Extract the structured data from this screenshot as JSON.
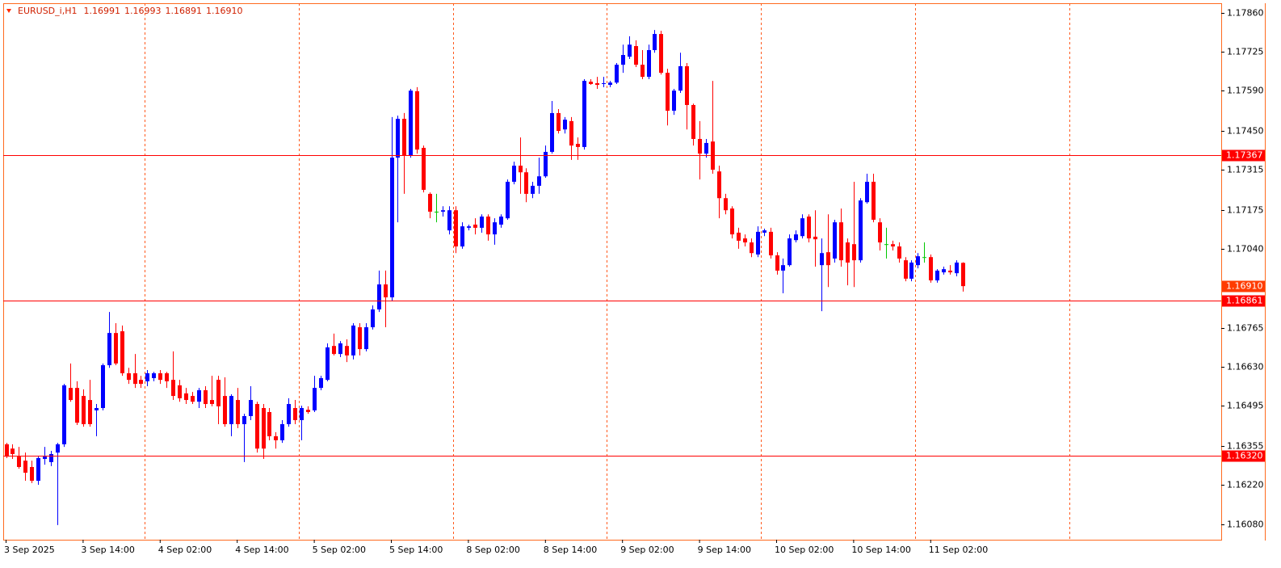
{
  "chart_data": {
    "type": "candlestick",
    "header": {
      "symbol": "EURUSD_i,H1",
      "ohlc_labels": [
        "1.16991",
        "1.16993",
        "1.16891",
        "1.16910"
      ]
    },
    "categories": [
      "3 Sep 2025",
      null,
      null,
      null,
      null,
      null,
      null,
      null,
      null,
      null,
      null,
      null,
      "3 Sep 14:00",
      null,
      null,
      null,
      null,
      null,
      null,
      null,
      null,
      null,
      null,
      null,
      "4 Sep 02:00",
      null,
      null,
      null,
      null,
      null,
      null,
      null,
      null,
      null,
      null,
      null,
      "4 Sep 14:00",
      null,
      null,
      null,
      null,
      null,
      null,
      null,
      null,
      null,
      null,
      null,
      "5 Sep 02:00",
      null,
      null,
      null,
      null,
      null,
      null,
      null,
      null,
      null,
      null,
      null,
      "5 Sep 14:00",
      null,
      null,
      null,
      null,
      null,
      null,
      null,
      null,
      null,
      null,
      null,
      "8 Sep 02:00",
      null,
      null,
      null,
      null,
      null,
      null,
      null,
      null,
      null,
      null,
      null,
      "8 Sep 14:00",
      null,
      null,
      null,
      null,
      null,
      null,
      null,
      null,
      null,
      null,
      null,
      "9 Sep 02:00",
      null,
      null,
      null,
      null,
      null,
      null,
      null,
      null,
      null,
      null,
      null,
      "9 Sep 14:00",
      null,
      null,
      null,
      null,
      null,
      null,
      null,
      null,
      null,
      null,
      null,
      "10 Sep 02:00",
      null,
      null,
      null,
      null,
      null,
      null,
      null,
      null,
      null,
      null,
      null,
      "10 Sep 14:00",
      null,
      null,
      null,
      null,
      null,
      null,
      null,
      null,
      null,
      null,
      null,
      "11 Sep 02:00",
      null,
      null,
      null,
      null,
      null
    ],
    "ohlc": [
      [
        1.1636,
        1.16365,
        1.16312,
        1.16317
      ],
      [
        1.16345,
        1.1636,
        1.16309,
        1.16326
      ],
      [
        1.16317,
        1.16351,
        1.16275,
        1.16281
      ],
      [
        1.16303,
        1.16331,
        1.16233,
        1.16261
      ],
      [
        1.16281,
        1.16303,
        1.16225,
        1.16233
      ],
      [
        1.16233,
        1.16317,
        1.16219,
        1.16312
      ],
      [
        1.16309,
        1.16351,
        1.16289,
        1.16317
      ],
      [
        1.16298,
        1.16337,
        1.16284,
        1.16326
      ],
      [
        1.16331,
        1.16365,
        1.16079,
        1.1636
      ],
      [
        1.1636,
        1.1657,
        1.16351,
        1.16565
      ],
      [
        1.16556,
        1.16641,
        1.16508,
        1.16514
      ],
      [
        1.16556,
        1.16579,
        1.16427,
        1.16435
      ],
      [
        1.16528,
        1.16551,
        1.16421,
        1.1643
      ],
      [
        1.16514,
        1.16584,
        1.16421,
        1.1643
      ],
      [
        1.16478,
        1.165,
        1.16388,
        1.16486
      ],
      [
        1.16486,
        1.16641,
        1.16478,
        1.16635
      ],
      [
        1.16635,
        1.1682,
        1.16626,
        1.16747
      ],
      [
        1.16747,
        1.16781,
        1.16635,
        1.16641
      ],
      [
        1.16753,
        1.16773,
        1.16598,
        1.16607
      ],
      [
        1.16607,
        1.16626,
        1.1657,
        1.16584
      ],
      [
        1.16607,
        1.16674,
        1.16556,
        1.1657
      ],
      [
        1.16584,
        1.16598,
        1.16556,
        1.1657
      ],
      [
        1.16579,
        1.16618,
        1.16562,
        1.16607
      ],
      [
        1.1659,
        1.16612,
        1.16579,
        1.16607
      ],
      [
        1.16607,
        1.16618,
        1.1657,
        1.16584
      ],
      [
        1.16607,
        1.16612,
        1.16556,
        1.16579
      ],
      [
        1.16584,
        1.16683,
        1.16514,
        1.16528
      ],
      [
        1.16565,
        1.16584,
        1.16508,
        1.1652
      ],
      [
        1.16537,
        1.16556,
        1.165,
        1.16514
      ],
      [
        1.16528,
        1.16542,
        1.165,
        1.16508
      ],
      [
        1.16508,
        1.16556,
        1.16486,
        1.16548
      ],
      [
        1.16548,
        1.16562,
        1.16486,
        1.165
      ],
      [
        1.16514,
        1.16598,
        1.16492,
        1.165
      ],
      [
        1.16584,
        1.16598,
        1.1643,
        1.16492
      ],
      [
        1.16528,
        1.16593,
        1.16421,
        1.1643
      ],
      [
        1.1643,
        1.16534,
        1.16388,
        1.16528
      ],
      [
        1.16514,
        1.16556,
        1.16416,
        1.1643
      ],
      [
        1.1643,
        1.16466,
        1.16298,
        1.16458
      ],
      [
        1.16458,
        1.16562,
        1.16444,
        1.16514
      ],
      [
        1.165,
        1.16508,
        1.16331,
        1.16345
      ],
      [
        1.16486,
        1.165,
        1.16309,
        1.16345
      ],
      [
        1.16472,
        1.16486,
        1.16374,
        1.16388
      ],
      [
        1.16388,
        1.16402,
        1.16345,
        1.16374
      ],
      [
        1.16374,
        1.16444,
        1.16365,
        1.1643
      ],
      [
        1.1643,
        1.1652,
        1.16421,
        1.165
      ],
      [
        1.16486,
        1.16514,
        1.1643,
        1.16444
      ],
      [
        1.16444,
        1.16494,
        1.16374,
        1.16486
      ],
      [
        1.1648,
        1.16492,
        1.16466,
        1.16472
      ],
      [
        1.16478,
        1.16598,
        1.16472,
        1.16556
      ],
      [
        1.16556,
        1.16598,
        1.16548,
        1.1659
      ],
      [
        1.16584,
        1.16711,
        1.16579,
        1.16697
      ],
      [
        1.16702,
        1.16745,
        1.16669,
        1.16674
      ],
      [
        1.16674,
        1.16719,
        1.16663,
        1.16711
      ],
      [
        1.16702,
        1.16725,
        1.16646,
        1.16669
      ],
      [
        1.16669,
        1.16781,
        1.16655,
        1.16773
      ],
      [
        1.16767,
        1.16781,
        1.16669,
        1.16691
      ],
      [
        1.16691,
        1.16781,
        1.16683,
        1.16767
      ],
      [
        1.16767,
        1.16843,
        1.16759,
        1.16829
      ],
      [
        1.16829,
        1.16964,
        1.1682,
        1.16916
      ],
      [
        1.16916,
        1.16964,
        1.16767,
        1.16871
      ],
      [
        1.16871,
        1.17498,
        1.1686,
        1.17357
      ],
      [
        1.17357,
        1.17503,
        1.17132,
        1.17492
      ],
      [
        1.17492,
        1.17512,
        1.17231,
        1.17363
      ],
      [
        1.17363,
        1.17596,
        1.17357,
        1.1759
      ],
      [
        1.17588,
        1.17602,
        1.17371,
        1.17385
      ],
      [
        1.17391,
        1.17399,
        1.17236,
        1.17245
      ],
      [
        1.17231,
        1.17236,
        1.17146,
        1.17169
      ],
      [
        1.17169,
        1.17231,
        1.17132,
        1.17169
      ],
      [
        1.17169,
        1.17188,
        1.17152,
        1.17174
      ],
      [
        1.17104,
        1.17188,
        1.1709,
        1.17174
      ],
      [
        1.17174,
        1.17188,
        1.17025,
        1.17048
      ],
      [
        1.17048,
        1.17132,
        1.1704,
        1.17118
      ],
      [
        1.17113,
        1.17124,
        1.17104,
        1.17118
      ],
      [
        1.17124,
        1.17146,
        1.1709,
        1.17113
      ],
      [
        1.17113,
        1.1716,
        1.17096,
        1.17152
      ],
      [
        1.17152,
        1.1716,
        1.17068,
        1.1709
      ],
      [
        1.1709,
        1.17146,
        1.17054,
        1.17132
      ],
      [
        1.17124,
        1.1716,
        1.17113,
        1.17152
      ],
      [
        1.17146,
        1.17281,
        1.17141,
        1.17273
      ],
      [
        1.17273,
        1.17343,
        1.17264,
        1.17329
      ],
      [
        1.17329,
        1.17427,
        1.17231,
        1.17306
      ],
      [
        1.17306,
        1.1732,
        1.17202,
        1.17231
      ],
      [
        1.17231,
        1.17273,
        1.17216,
        1.17259
      ],
      [
        1.17259,
        1.17357,
        1.17231,
        1.17292
      ],
      [
        1.17292,
        1.17399,
        1.17287,
        1.17377
      ],
      [
        1.17377,
        1.17554,
        1.17371,
        1.17512
      ],
      [
        1.17512,
        1.17526,
        1.17441,
        1.1745
      ],
      [
        1.17455,
        1.17498,
        1.17441,
        1.17489
      ],
      [
        1.17484,
        1.17498,
        1.17349,
        1.17399
      ],
      [
        1.17405,
        1.17427,
        1.17349,
        1.17394
      ],
      [
        1.17394,
        1.1763,
        1.17385,
        1.17624
      ],
      [
        1.17621,
        1.1763,
        1.1761,
        1.17613
      ],
      [
        1.17616,
        1.17638,
        1.17596,
        1.1761
      ],
      [
        1.17613,
        1.17638,
        1.17602,
        1.17616
      ],
      [
        1.1761,
        1.17624,
        1.17602,
        1.17618
      ],
      [
        1.17618,
        1.17686,
        1.17613,
        1.1768
      ],
      [
        1.1768,
        1.1775,
        1.17652,
        1.17714
      ],
      [
        1.17708,
        1.17779,
        1.177,
        1.1775
      ],
      [
        1.17745,
        1.17765,
        1.17672,
        1.1768
      ],
      [
        1.1768,
        1.17731,
        1.1763,
        1.17638
      ],
      [
        1.17638,
        1.1775,
        1.1763,
        1.17731
      ],
      [
        1.17731,
        1.17801,
        1.17722,
        1.17787
      ],
      [
        1.17787,
        1.17798,
        1.17646,
        1.17652
      ],
      [
        1.17652,
        1.17666,
        1.17469,
        1.1752
      ],
      [
        1.1752,
        1.17596,
        1.17506,
        1.1759
      ],
      [
        1.1759,
        1.17722,
        1.17582,
        1.17675
      ],
      [
        1.17675,
        1.17686,
        1.17455,
        1.1754
      ],
      [
        1.1754,
        1.17545,
        1.17399,
        1.17422
      ],
      [
        1.17422,
        1.17484,
        1.17281,
        1.17371
      ],
      [
        1.17371,
        1.17422,
        1.17357,
        1.17408
      ],
      [
        1.17413,
        1.17624,
        1.17301,
        1.17315
      ],
      [
        1.17309,
        1.17329,
        1.17146,
        1.17216
      ],
      [
        1.17216,
        1.17231,
        1.1716,
        1.17174
      ],
      [
        1.1718,
        1.17188,
        1.17076,
        1.1709
      ],
      [
        1.17096,
        1.17113,
        1.1704,
        1.17068
      ],
      [
        1.17076,
        1.1709,
        1.17048,
        1.17062
      ],
      [
        1.17062,
        1.17076,
        1.17011,
        1.17025
      ],
      [
        1.1702,
        1.17118,
        1.17011,
        1.17099
      ],
      [
        1.17096,
        1.1711,
        1.17084,
        1.17104
      ],
      [
        1.17099,
        1.17113,
        1.17006,
        1.17017
      ],
      [
        1.17017,
        1.17028,
        1.1695,
        1.16964
      ],
      [
        1.16964,
        1.17006,
        1.16885,
        1.16983
      ],
      [
        1.16983,
        1.1709,
        1.16978,
        1.17076
      ],
      [
        1.1707,
        1.17104,
        1.17062,
        1.1709
      ],
      [
        1.17084,
        1.1716,
        1.17076,
        1.17146
      ],
      [
        1.17152,
        1.1716,
        1.17062,
        1.17076
      ],
      [
        1.17082,
        1.17174,
        1.16978,
        1.17073
      ],
      [
        1.16983,
        1.17076,
        1.16823,
        1.17025
      ],
      [
        1.17028,
        1.1716,
        1.16907,
        1.16983
      ],
      [
        1.17006,
        1.17141,
        1.16992,
        1.17132
      ],
      [
        1.17132,
        1.1718,
        1.16978,
        1.17
      ],
      [
        1.17062,
        1.17076,
        1.16913,
        1.16992
      ],
      [
        1.17056,
        1.17273,
        1.16907,
        1.17
      ],
      [
        1.17,
        1.17216,
        1.16992,
        1.17208
      ],
      [
        1.17202,
        1.17301,
        1.17197,
        1.17273
      ],
      [
        1.17273,
        1.17301,
        1.17132,
        1.17141
      ],
      [
        1.17132,
        1.17146,
        1.17034,
        1.17062
      ],
      [
        1.17056,
        1.17113,
        1.17006,
        1.17056
      ],
      [
        1.17056,
        1.17068,
        1.17034,
        1.17048
      ],
      [
        1.17048,
        1.17062,
        1.16992,
        1.17006
      ],
      [
        1.17,
        1.17011,
        1.16927,
        1.16936
      ],
      [
        1.16936,
        1.17,
        1.16927,
        1.16992
      ],
      [
        1.16983,
        1.17025,
        1.16972,
        1.17014
      ],
      [
        1.17011,
        1.17062,
        1.16992,
        1.17011
      ],
      [
        1.17011,
        1.1702,
        1.16922,
        1.1693
      ],
      [
        1.1693,
        1.16969,
        1.16922,
        1.16964
      ],
      [
        1.16958,
        1.16978,
        1.1695,
        1.16969
      ],
      [
        1.16964,
        1.16983,
        1.1695,
        1.16958
      ],
      [
        1.16955,
        1.17,
        1.16944,
        1.16992
      ],
      [
        1.16991,
        1.16993,
        1.16891,
        1.1691
      ]
    ],
    "ylim": [
      1.16028,
      1.17894
    ],
    "yticks": [
      {
        "value": 1.1786,
        "label": "1.17860"
      },
      1.17725,
      {
        "value": 1.1759,
        "label": "1.17590"
      },
      {
        "value": 1.1745,
        "label": "1.17450"
      },
      1.17315,
      1.17175,
      {
        "value": 1.1704,
        "label": "1.17040"
      },
      1.16765,
      {
        "value": 1.1663,
        "label": "1.16630"
      },
      1.16495,
      1.16355,
      {
        "value": 1.1622,
        "label": "1.16220"
      },
      {
        "value": 1.1608,
        "label": "1.16080"
      }
    ],
    "levels": [
      1.17367,
      1.16861,
      {
        "value": 1.1632,
        "label": "1.16320"
      }
    ],
    "last_price": {
      "value": 1.1691,
      "label": "1.16910"
    },
    "up_color": "#0000ff",
    "down_color": "#ff0000",
    "doji_color": "#00c800",
    "level_color": "#ff0000",
    "last_price_color": "#ff3c00",
    "grid_color": "#ff5a1e",
    "grid": true
  }
}
